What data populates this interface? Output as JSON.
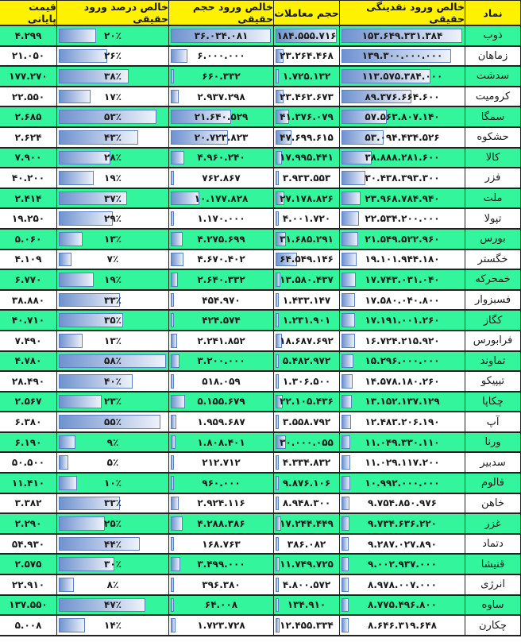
{
  "headers": [
    "نماد",
    "خالص ورود نقدینگی حقیقی",
    "حجم معاملات",
    "خالص ورود حجم حقیقی",
    "خالص درصد ورود حقیقی",
    "قیمت پایانی"
  ],
  "colors": {
    "header": "#fff200",
    "row_green": "#33f59b",
    "row_white": "#ffffff",
    "bar": "#6f92cf"
  },
  "rows": [
    [
      "ذوب",
      "۱۵۳.۶۴۹.۳۳۱.۳۸۴",
      "۱۸۴.۵۵۵.۷۱۶",
      "۳۶.۰۳۴.۰۸۱",
      "۲۰٪",
      "۴.۲۹۹"
    ],
    [
      "زماهان",
      "۱۳۹.۳۰۰.۰۰۰.۰۰۰",
      "۲۳.۲۶۴.۴۶۸",
      "۶.۰۰۰.۰۰۰",
      "۲۶٪",
      "۲۱.۰۵۰"
    ],
    [
      "سدشت",
      "۱۱۳.۵۷۵.۳۸۴.۰۰۰",
      "۱.۷۲۵.۱۳۲",
      "۶۶۰.۳۳۲",
      "۳۸٪",
      "۱۷۷.۲۷۰"
    ],
    [
      "کرومیت",
      "۸۹.۳۷۶.۶۶۴.۶۰۰",
      "۲۳.۴۶۲.۶۷۳",
      "۲.۹۳۷.۲۹۸",
      "۱۷٪",
      "۲۲.۵۵۰"
    ],
    [
      "سمگا",
      "۵۷.۵۶۳.۸۰۷.۱۴۰",
      "۴۱.۳۷۶.۰۷۹",
      "۲۱.۶۴۰.۵۲۹",
      "۵۳٪",
      "۲.۶۸۵"
    ],
    [
      "حشکوه",
      "۵۳.۰۹۴.۴۳۴.۵۲۶",
      "۴۷.۶۹۹.۶۱۵",
      "۲۰.۷۲۳.۸۲۳",
      "۴۳٪",
      "۲.۶۲۴"
    ],
    [
      "کالا",
      "۳۸.۸۸۸.۲۸۱.۶۰۰",
      "۱۷.۹۹۵.۴۴۱",
      "۴.۹۶۰.۲۴۰",
      "۲۸٪",
      "۷.۹۰۰"
    ],
    [
      "فزر",
      "۳۰.۴۳۸.۳۹۳.۳۰۰",
      "۳.۹۳۳.۵۵۳",
      "۷۶۲.۸۶۷",
      "۱۹٪",
      "۴۰.۲۰۰"
    ],
    [
      "ملت",
      "۲۳.۹۶۸.۷۸۴.۹۴۰",
      "۲۷.۱۷۸.۸۲۶",
      "۱۰.۱۷۷.۸۲۸",
      "۳۷٪",
      "۲.۴۱۴"
    ],
    [
      "تپولا",
      "۲۲.۵۳۴.۲۰۰.۰۰۰",
      "۴.۰۰۱.۷۲۰",
      "۱.۱۷۰.۰۰۰",
      "۲۹٪",
      "۱۹.۲۵۰"
    ],
    [
      "بورس",
      "۲۱.۵۴۹.۵۲۲.۹۶۰",
      "۳۱.۶۸۵.۲۹۱",
      "۴.۲۷۵.۶۹۹",
      "۱۳٪",
      "۵.۰۶۰"
    ],
    [
      "خگستر",
      "۱۹.۱۰۱.۹۴۴.۱۸۰",
      "۶۴.۵۴۹.۱۴۶",
      "۴.۶۷۰.۴۰۲",
      "۷٪",
      "۴.۱۰۹"
    ],
    [
      "خمحرکه",
      "۱۷.۷۴۳.۰۳۱.۰۴۰",
      "۱۳.۵۸۰.۴۳۷",
      "۲.۶۴۰.۳۳۲",
      "۱۹٪",
      "۶.۷۷۰"
    ],
    [
      "فسبزوار",
      "۱۷.۵۸۰.۰۴۰.۸۰۰",
      "۱.۴۳۳.۱۴۷",
      "۴۵۴.۹۷۰",
      "۳۳٪",
      "۳۸.۸۸۰"
    ],
    [
      "کگاز",
      "۱۷.۱۹۱.۰۰۱.۲۶۰",
      "۱.۲۳۱.۹۰۱",
      "۴۲۴.۵۷۴",
      "۳۵٪",
      "۴۰.۷۱۰"
    ],
    [
      "فرابورس",
      "۱۶.۷۲۴.۲۱۵.۹۲۰",
      "۱۸.۶۸۷.۶۹۲",
      "۲.۲۴۱.۸۵۲",
      "۱۳٪",
      "۷.۴۹۰"
    ],
    [
      "تماوند",
      "۱۵.۲۹۶.۰۰۰.۰۰۰",
      "۵.۴۸۲.۹۷۲",
      "۳.۲۰۰.۰۰۰",
      "۵۸٪",
      "۴.۷۸۰"
    ],
    [
      "تیپیکو",
      "۱۴.۵۷۸.۱۸۰.۲۶۰",
      "۱.۳۰۶.۵۰۰",
      "۵۱۸.۰۵۹",
      "۴۰٪",
      "۲۸.۴۹۰"
    ],
    [
      "چکاپا",
      "۱۳.۱۵۲.۱۳۷.۱۲۹",
      "۲۲.۱۰۵.۴۳۶",
      "۵.۱۵۵.۶۷۹",
      "۲۳٪",
      "۲.۵۶۷"
    ],
    [
      "آپ",
      "۱۲.۴۸۳.۲۰۶.۱۹۰",
      "۳.۵۵۸.۷۹۲",
      "۱.۹۵۹.۶۸۷",
      "۵۵٪",
      "۶.۳۸۰"
    ],
    [
      "ورنا",
      "۱۱.۰۴۹.۳۳۰.۱۱۰",
      "۳۰.۰۰۰.۰۵۵",
      "۱.۸۰۸.۴۰۱",
      "۹٪",
      "۶.۱۹۰"
    ],
    [
      "سدبیر",
      "۱۱.۰۲۹.۱۱۷.۲۰۰",
      "۴.۳۳۴.۸۳۲",
      "۲۱۲.۷۱۲",
      "۵٪",
      "۵۰.۵۰۰"
    ],
    [
      "فالوم",
      "۱۰.۹۹۲.۰۰۰.۰۰۰",
      "۹.۸۷۶.۱۰۶",
      "۹۶۰.۰۰۰",
      "۱۰٪",
      "۱۱.۴۱۰"
    ],
    [
      "خاهن",
      "۹.۷۵۴.۸۵۰.۹۷۶",
      "۸.۹۴۸.۳۰۰",
      "۲.۹۲۴.۱۱۶",
      "۳۳٪",
      "۳.۳۸۲"
    ],
    [
      "غزر",
      "۹.۷۳۴.۶۳۶.۲۲۰",
      "۱۷.۲۴۴.۴۴۹",
      "۴.۲۸۸.۳۸۶",
      "۲۵٪",
      "۲.۲۹۰"
    ],
    [
      "دتماد",
      "۹.۲۸۷.۰۲۷.۸۹۰",
      "۳۸۶.۰۸۲",
      "۱۶۸.۷۶۳",
      "۴۴٪",
      "۵۴.۹۳۰"
    ],
    [
      "قنیشا",
      "۹.۰۰۲.۹۳۷.۰۰۰",
      "۱۱.۷۴۹.۷۲۵",
      "۳.۴۹۹.۰۰۰",
      "۳۰٪",
      "۲.۵۷۵"
    ],
    [
      "انرژی",
      "۸.۹۷۸.۰۰۷.۰۰۰",
      "۴.۸۰۰.۵۷۲",
      "۳۹۶.۳۸۰",
      "۸٪",
      "۲۲.۹۱۰"
    ],
    [
      "ساوه",
      "۸.۷۷۵.۴۹۶.۸۰۰",
      "۱۳۴.۹۱۰",
      "۶۴.۰۰۸",
      "۴۷٪",
      "۱۳۷.۵۵۰"
    ],
    [
      "چکارن",
      "۸.۶۴۶.۳۱۹.۶۴۸",
      "۱۲.۴۵۵.۳۳۴",
      "۱.۷۲۳.۷۲۸",
      "۱۴٪",
      "۵.۰۰۸"
    ]
  ]
}
